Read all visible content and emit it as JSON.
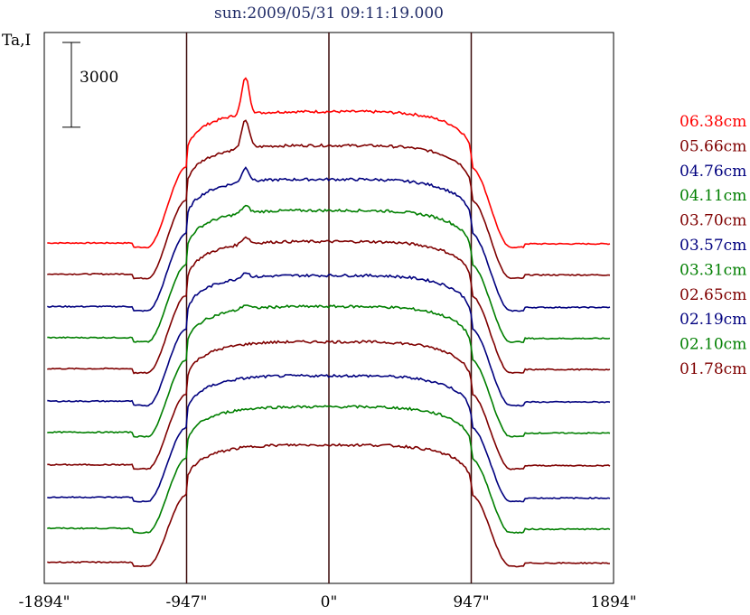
{
  "chart_data": {
    "type": "line",
    "title": "sun:2009/05/31 09:11:19.000",
    "ylabel": "Ta,I",
    "x_unit": "arcsec",
    "xlim": [
      -1894,
      1894
    ],
    "x_ticks": [
      -1894,
      -947,
      0,
      947,
      1894
    ],
    "x_tick_labels": [
      "-1894\"",
      "-947\"",
      "0\"",
      "947\"",
      "1894\""
    ],
    "vertical_lines": [
      -947,
      0,
      947
    ],
    "scale_bar": {
      "value": 3000,
      "label": "3000"
    },
    "series": [
      {
        "name": "06.38cm",
        "color": "#ff0000",
        "baseline": 0,
        "disk_height": 4800,
        "peak_at": -555,
        "peak_height": 1300
      },
      {
        "name": "05.66cm",
        "color": "#7f0000",
        "baseline": -1100,
        "disk_height": 4700,
        "peak_at": -555,
        "peak_height": 1000
      },
      {
        "name": "04.76cm",
        "color": "#00007f",
        "baseline": -2250,
        "disk_height": 4650,
        "peak_at": -555,
        "peak_height": 500
      },
      {
        "name": "04.11cm",
        "color": "#007f00",
        "baseline": -3350,
        "disk_height": 4650,
        "peak_at": -555,
        "peak_height": 250
      },
      {
        "name": "03.70cm",
        "color": "#7f0000",
        "baseline": -4450,
        "disk_height": 4650,
        "peak_at": -555,
        "peak_height": 250
      },
      {
        "name": "03.57cm",
        "color": "#00007f",
        "baseline": -5600,
        "disk_height": 4600,
        "peak_at": -555,
        "peak_height": 200
      },
      {
        "name": "03.31cm",
        "color": "#007f00",
        "baseline": -6700,
        "disk_height": 4600,
        "peak_at": -555,
        "peak_height": 150
      },
      {
        "name": "02.65cm",
        "color": "#7f0000",
        "baseline": -7850,
        "disk_height": 4500,
        "peak_at": -555,
        "peak_height": 0
      },
      {
        "name": "02.19cm",
        "color": "#00007f",
        "baseline": -9000,
        "disk_height": 4450,
        "peak_at": -555,
        "peak_height": 0
      },
      {
        "name": "02.10cm",
        "color": "#007f00",
        "baseline": -10100,
        "disk_height": 4450,
        "peak_at": -555,
        "peak_height": 0
      },
      {
        "name": "01.78cm",
        "color": "#7f0000",
        "baseline": -11300,
        "disk_height": 4300,
        "peak_at": -555,
        "peak_height": 0
      }
    ],
    "ylim": [
      -11900,
      7600
    ],
    "grid": false,
    "legend_position": "right"
  }
}
